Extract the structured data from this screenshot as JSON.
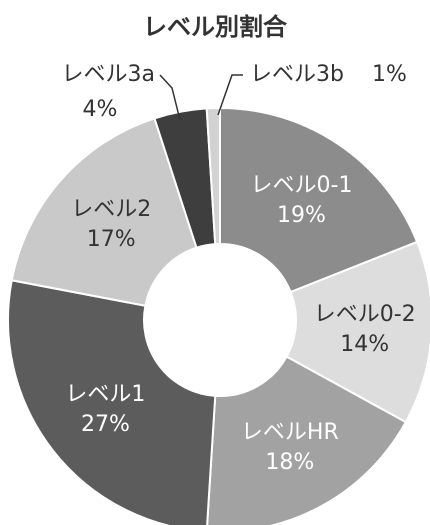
{
  "chart_data": {
    "type": "donut",
    "title": "レベル別割合",
    "categories": [
      "レベル0-1",
      "レベル0-2",
      "レベルHR",
      "レベル1",
      "レベル2",
      "レベル3a",
      "レベル3b"
    ],
    "values": [
      19,
      14,
      18,
      27,
      17,
      4,
      1
    ],
    "value_labels": [
      "19%",
      "14%",
      "18%",
      "27%",
      "17%",
      "4%",
      "1%"
    ],
    "colors": [
      "#8c8c8c",
      "#dddddd",
      "#a2a2a2",
      "#5c5c5c",
      "#c9c9c9",
      "#3e3e3e",
      "#d2d2d2"
    ]
  }
}
